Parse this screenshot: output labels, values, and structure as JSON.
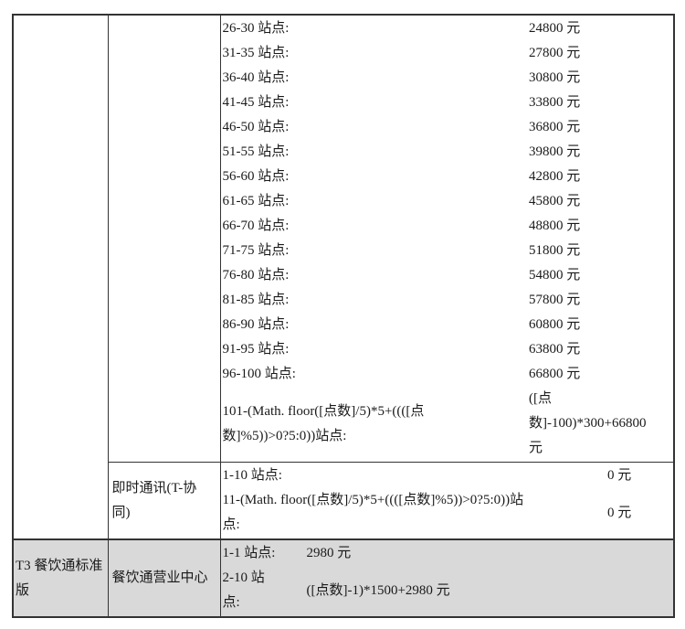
{
  "colors": {
    "border": "#333333",
    "text": "#1a1a1a",
    "highlight_row_bg": "#d9d9d9"
  },
  "table": {
    "sections": [
      {
        "col1": "",
        "col2": "",
        "rows": [
          {
            "label": "26-30 站点:",
            "price": "24800 元"
          },
          {
            "label": "31-35 站点:",
            "price": "27800 元"
          },
          {
            "label": "36-40 站点:",
            "price": "30800 元"
          },
          {
            "label": "41-45 站点:",
            "price": "33800 元"
          },
          {
            "label": "46-50 站点:",
            "price": "36800 元"
          },
          {
            "label": "51-55 站点:",
            "price": "39800 元"
          },
          {
            "label": "56-60 站点:",
            "price": "42800 元"
          },
          {
            "label": "61-65 站点:",
            "price": "45800 元"
          },
          {
            "label": "66-70 站点:",
            "price": "48800 元"
          },
          {
            "label": "71-75 站点:",
            "price": "51800 元"
          },
          {
            "label": "76-80 站点:",
            "price": "54800 元"
          },
          {
            "label": "81-85 站点:",
            "price": "57800 元"
          },
          {
            "label": "86-90 站点:",
            "price": "60800 元"
          },
          {
            "label": "91-95 站点:",
            "price": "63800 元"
          },
          {
            "label": "96-100 站点:",
            "price": "66800 元"
          },
          {
            "label": "101-(Math. floor([点数]/5)*5+((([点\n数]%5))>0?5:0))站点:",
            "price": "([点\n数]-100)*300+66800\n元"
          }
        ]
      },
      {
        "col2": "即时通讯(T-协\n同)",
        "rows": [
          {
            "label": "1-10 站点:",
            "price": "0 元"
          },
          {
            "label": "11-(Math. floor([点数]/5)*5+((([点数]%5))>0?5:0))站\n点:",
            "price": "0 元"
          }
        ]
      },
      {
        "col1": "T3 餐饮通标准\n版",
        "col2": "餐饮通营业中心",
        "rows": [
          {
            "label": "1-1 站点:",
            "price": "2980 元"
          },
          {
            "label": "2-10 站\n点:",
            "price": "([点数]-1)*1500+2980 元"
          }
        ]
      }
    ]
  }
}
